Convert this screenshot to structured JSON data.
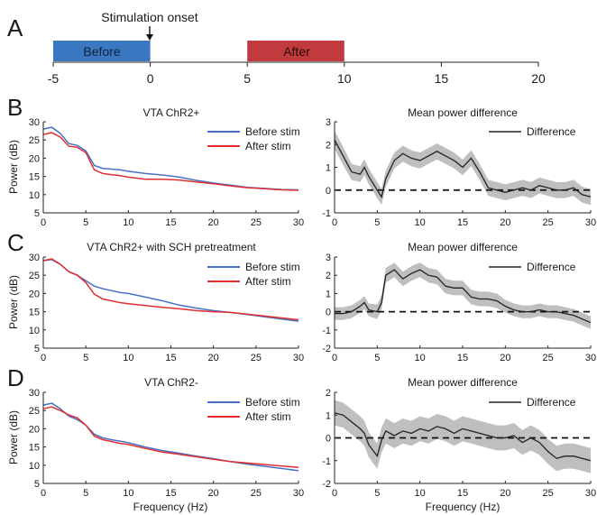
{
  "colors": {
    "before": "#4a6fc7",
    "after": "#e03030",
    "difference": "#222222",
    "band": "#b8b8b8",
    "before_block": "#3a78c2",
    "after_block": "#c03a3e"
  },
  "timeline": {
    "panel_letter": "A",
    "onset_label": "Stimulation onset",
    "before_label": "Before",
    "after_label": "After",
    "ticks": [
      "-5",
      "0",
      "5",
      "10",
      "15",
      "20"
    ]
  },
  "rows": [
    {
      "letter": "B",
      "left_title": "VTA ChR2+",
      "right_title": "Mean power difference"
    },
    {
      "letter": "C",
      "left_title": "VTA ChR2+ with SCH pretreatment",
      "right_title": "Mean power difference"
    },
    {
      "letter": "D",
      "left_title": "VTA ChR2-",
      "right_title": "Mean power difference"
    }
  ],
  "legend": {
    "before": "Before stim",
    "after": "After stim",
    "difference": "Difference"
  },
  "axis_labels": {
    "x": "Frequency (Hz)",
    "y": "Power (dB)"
  },
  "chart_data": [
    {
      "id": "timeline",
      "type": "timeline",
      "xlim": [
        -5,
        20
      ],
      "xticks": [
        -5,
        0,
        5,
        10,
        15,
        20
      ],
      "blocks": [
        {
          "label": "Before",
          "start": -5,
          "end": 0
        },
        {
          "label": "After",
          "start": 5,
          "end": 10
        }
      ],
      "annotation": {
        "text": "Stimulation onset",
        "x": 0
      }
    },
    {
      "id": "B-power",
      "type": "line",
      "title": "VTA ChR2+",
      "xlabel": "",
      "ylabel": "Power (dB)",
      "xlim": [
        0,
        30
      ],
      "ylim": [
        5,
        30
      ],
      "xticks": [
        0,
        5,
        10,
        15,
        20,
        25,
        30
      ],
      "yticks": [
        5,
        10,
        15,
        20,
        25,
        30
      ],
      "x": [
        0,
        1,
        2,
        3,
        4,
        5,
        6,
        7,
        8,
        9,
        10,
        12,
        14,
        16,
        18,
        20,
        22,
        24,
        26,
        28,
        30
      ],
      "series": [
        {
          "name": "Before stim",
          "values": [
            28.0,
            28.5,
            26.8,
            24.0,
            23.5,
            22.0,
            18.0,
            17.2,
            17.0,
            16.8,
            16.4,
            15.8,
            15.4,
            14.8,
            13.9,
            13.2,
            12.6,
            12.0,
            11.7,
            11.4,
            11.3
          ]
        },
        {
          "name": "After stim",
          "values": [
            26.5,
            27.0,
            25.8,
            23.3,
            23.0,
            21.5,
            16.8,
            15.8,
            15.5,
            15.2,
            14.8,
            14.2,
            14.2,
            14.0,
            13.5,
            13.0,
            12.4,
            11.9,
            11.6,
            11.3,
            11.2
          ]
        }
      ]
    },
    {
      "id": "B-diff",
      "type": "line",
      "title": "Mean power difference",
      "xlabel": "",
      "ylabel": "",
      "xlim": [
        0,
        30
      ],
      "ylim": [
        -1,
        3
      ],
      "xticks": [
        0,
        5,
        10,
        15,
        20,
        25,
        30
      ],
      "yticks": [
        -1,
        0,
        1,
        2,
        3
      ],
      "reference_line": 0,
      "x": [
        0,
        1,
        2,
        3,
        3.5,
        4,
        5,
        5.5,
        6,
        7,
        8,
        9,
        10,
        11,
        12,
        13,
        14,
        15,
        16,
        17,
        18,
        19,
        20,
        21,
        22,
        23,
        24,
        25,
        26,
        27,
        28,
        29,
        30
      ],
      "series": [
        {
          "name": "Difference",
          "values": [
            2.2,
            1.5,
            0.8,
            0.7,
            1.0,
            0.6,
            0.0,
            -0.3,
            0.5,
            1.3,
            1.6,
            1.4,
            1.3,
            1.5,
            1.7,
            1.5,
            1.3,
            1.0,
            1.4,
            0.8,
            0.1,
            0.0,
            -0.1,
            0.0,
            0.1,
            0.0,
            0.2,
            0.1,
            0.0,
            0.0,
            0.1,
            -0.2,
            -0.3
          ]
        },
        {
          "name": "band_halfwidth",
          "values": [
            0.4,
            0.4,
            0.35,
            0.35,
            0.35,
            0.35,
            0.35,
            0.35,
            0.35,
            0.35,
            0.35,
            0.35,
            0.35,
            0.35,
            0.35,
            0.35,
            0.35,
            0.35,
            0.35,
            0.35,
            0.35,
            0.35,
            0.35,
            0.35,
            0.35,
            0.35,
            0.35,
            0.35,
            0.35,
            0.35,
            0.35,
            0.35,
            0.35
          ]
        }
      ]
    },
    {
      "id": "C-power",
      "type": "line",
      "title": "VTA ChR2+ with SCH pretreatment",
      "xlabel": "",
      "ylabel": "Power (dB)",
      "xlim": [
        0,
        30
      ],
      "ylim": [
        5,
        30
      ],
      "xticks": [
        0,
        5,
        10,
        15,
        20,
        25,
        30
      ],
      "yticks": [
        5,
        10,
        15,
        20,
        25,
        30
      ],
      "x": [
        0,
        1,
        2,
        3,
        4,
        5,
        6,
        7,
        8,
        9,
        10,
        12,
        14,
        16,
        18,
        20,
        22,
        24,
        26,
        28,
        30
      ],
      "series": [
        {
          "name": "Before stim",
          "values": [
            29.0,
            29.3,
            28.0,
            26.0,
            25.0,
            23.5,
            22.0,
            21.3,
            20.8,
            20.3,
            20.0,
            19.0,
            18.0,
            16.8,
            16.0,
            15.3,
            14.8,
            14.2,
            13.6,
            13.0,
            12.4
          ]
        },
        {
          "name": "After stim",
          "values": [
            29.0,
            29.5,
            28.0,
            26.0,
            25.0,
            23.0,
            19.8,
            18.5,
            18.0,
            17.5,
            17.2,
            16.7,
            16.2,
            15.8,
            15.3,
            15.0,
            14.8,
            14.3,
            13.8,
            13.3,
            12.8
          ]
        }
      ]
    },
    {
      "id": "C-diff",
      "type": "line",
      "title": "Mean power difference",
      "xlabel": "",
      "ylabel": "",
      "xlim": [
        0,
        30
      ],
      "ylim": [
        -2,
        3
      ],
      "xticks": [
        0,
        5,
        10,
        15,
        20,
        25,
        30
      ],
      "yticks": [
        -2,
        -1,
        0,
        1,
        2,
        3
      ],
      "reference_line": 0,
      "x": [
        0,
        1,
        2,
        3,
        3.5,
        4,
        5,
        5.5,
        6,
        7,
        8,
        9,
        10,
        11,
        12,
        13,
        14,
        15,
        16,
        17,
        18,
        19,
        20,
        21,
        22,
        23,
        24,
        25,
        26,
        27,
        28,
        29,
        30
      ],
      "series": [
        {
          "name": "Difference",
          "values": [
            -0.1,
            -0.1,
            0.0,
            0.3,
            0.5,
            0.1,
            0.0,
            0.5,
            2.0,
            2.3,
            1.8,
            2.1,
            2.3,
            2.0,
            1.9,
            1.4,
            1.3,
            1.3,
            0.8,
            0.7,
            0.7,
            0.6,
            0.3,
            0.1,
            0.0,
            0.0,
            0.1,
            0.0,
            0.0,
            -0.1,
            -0.2,
            -0.4,
            -0.6
          ]
        },
        {
          "name": "band_halfwidth",
          "values": [
            0.35,
            0.35,
            0.35,
            0.35,
            0.35,
            0.35,
            0.4,
            0.4,
            0.4,
            0.4,
            0.4,
            0.4,
            0.4,
            0.4,
            0.4,
            0.4,
            0.4,
            0.4,
            0.4,
            0.4,
            0.4,
            0.4,
            0.35,
            0.35,
            0.35,
            0.35,
            0.35,
            0.35,
            0.35,
            0.35,
            0.35,
            0.35,
            0.35
          ]
        }
      ]
    },
    {
      "id": "D-power",
      "type": "line",
      "title": "VTA ChR2-",
      "xlabel": "Frequency (Hz)",
      "ylabel": "Power (dB)",
      "xlim": [
        0,
        30
      ],
      "ylim": [
        5,
        30
      ],
      "xticks": [
        0,
        5,
        10,
        15,
        20,
        25,
        30
      ],
      "yticks": [
        5,
        10,
        15,
        20,
        25,
        30
      ],
      "x": [
        0,
        1,
        2,
        3,
        4,
        5,
        6,
        7,
        8,
        9,
        10,
        12,
        14,
        16,
        18,
        20,
        22,
        24,
        26,
        28,
        30
      ],
      "series": [
        {
          "name": "Before stim",
          "values": [
            26.5,
            27.0,
            25.5,
            23.5,
            22.5,
            21.0,
            18.5,
            17.5,
            17.0,
            16.6,
            16.2,
            15.0,
            14.0,
            13.3,
            12.5,
            11.8,
            11.0,
            10.3,
            9.7,
            9.1,
            8.5
          ]
        },
        {
          "name": "After stim",
          "values": [
            25.5,
            26.0,
            25.0,
            23.8,
            23.0,
            21.0,
            18.0,
            17.0,
            16.5,
            16.0,
            15.7,
            14.6,
            13.6,
            13.0,
            12.3,
            11.6,
            11.0,
            10.6,
            10.2,
            9.8,
            9.4
          ]
        }
      ]
    },
    {
      "id": "D-diff",
      "type": "line",
      "title": "Mean power difference",
      "xlabel": "Frequency (Hz)",
      "ylabel": "",
      "xlim": [
        0,
        30
      ],
      "ylim": [
        -2,
        2
      ],
      "xticks": [
        0,
        5,
        10,
        15,
        20,
        25,
        30
      ],
      "yticks": [
        -2,
        -1,
        0,
        1,
        2
      ],
      "reference_line": 0,
      "x": [
        0,
        1,
        2,
        3,
        3.5,
        4,
        5,
        5.5,
        6,
        7,
        8,
        9,
        10,
        11,
        12,
        13,
        14,
        15,
        16,
        17,
        18,
        19,
        20,
        21,
        22,
        23,
        24,
        25,
        26,
        27,
        28,
        29,
        30
      ],
      "series": [
        {
          "name": "Difference",
          "values": [
            1.1,
            1.0,
            0.7,
            0.4,
            0.2,
            -0.3,
            -0.8,
            -0.1,
            0.3,
            0.1,
            0.3,
            0.2,
            0.4,
            0.3,
            0.5,
            0.4,
            0.2,
            0.4,
            0.3,
            0.2,
            0.1,
            0.0,
            0.0,
            0.1,
            -0.2,
            0.0,
            -0.2,
            -0.6,
            -0.9,
            -0.8,
            -0.8,
            -0.9,
            -1.0
          ]
        },
        {
          "name": "band_halfwidth",
          "values": [
            0.55,
            0.55,
            0.55,
            0.55,
            0.55,
            0.55,
            0.55,
            0.55,
            0.55,
            0.55,
            0.55,
            0.55,
            0.55,
            0.55,
            0.55,
            0.55,
            0.55,
            0.55,
            0.55,
            0.55,
            0.55,
            0.55,
            0.55,
            0.55,
            0.55,
            0.55,
            0.55,
            0.55,
            0.55,
            0.55,
            0.55,
            0.55,
            0.55
          ]
        }
      ]
    }
  ]
}
